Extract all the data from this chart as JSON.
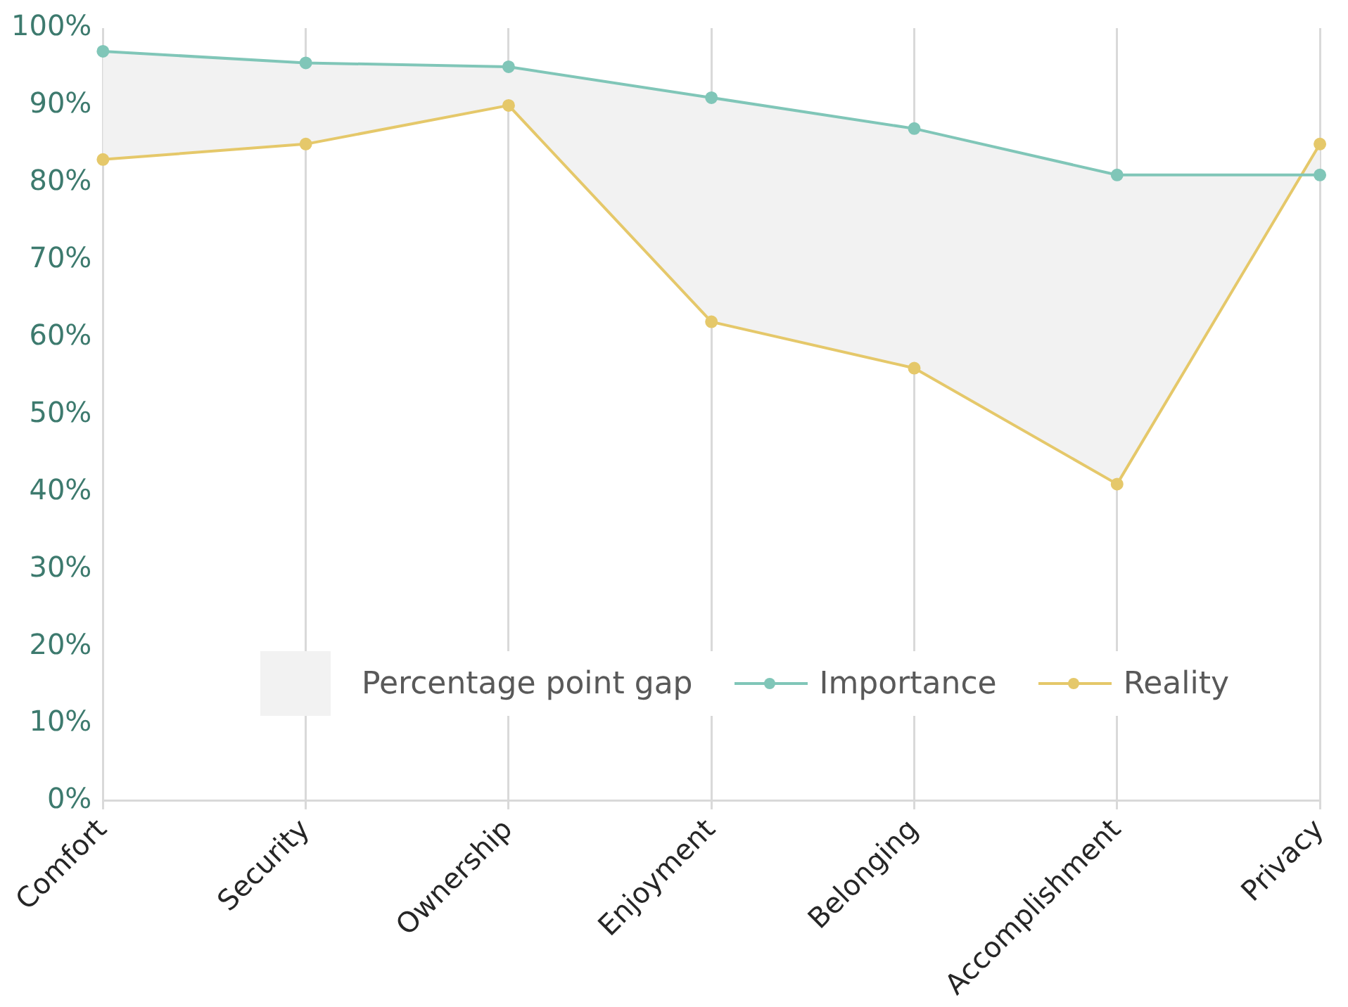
{
  "chart_data": {
    "type": "line",
    "categories": [
      "Comfort",
      "Security",
      "Ownership",
      "Enjoyment",
      "Belonging",
      "Accomplishment",
      "Privacy"
    ],
    "ylim": [
      0,
      100
    ],
    "yticks": [
      {
        "value": 0,
        "label": "0%"
      },
      {
        "value": 10,
        "label": "10%"
      },
      {
        "value": 20,
        "label": "20%"
      },
      {
        "value": 30,
        "label": "30%"
      },
      {
        "value": 40,
        "label": "40%"
      },
      {
        "value": 50,
        "label": "50%"
      },
      {
        "value": 60,
        "label": "60%"
      },
      {
        "value": 70,
        "label": "70%"
      },
      {
        "value": 80,
        "label": "80%"
      },
      {
        "value": 90,
        "label": "90%"
      },
      {
        "value": 100,
        "label": "100%"
      }
    ],
    "grid": "x",
    "legend": "bottom right",
    "marker": "circle",
    "line_style": "solid",
    "annotations": [
      "Percentage point gap"
    ],
    "series": [
      {
        "name": "Importance",
        "type": "line",
        "color": "#80c6b8",
        "values": [
          97,
          95.5,
          95,
          91,
          87,
          81,
          81
        ],
        "lower": [
          83,
          85,
          90,
          62,
          56,
          41,
          85
        ],
        "upper": [
          97,
          95.5,
          95,
          91,
          87,
          81,
          81
        ]
      },
      {
        "name": "Reality",
        "type": "line",
        "color": "#e5c86a",
        "values": [
          83,
          85,
          90,
          62,
          56,
          41,
          85
        ]
      }
    ]
  }
}
